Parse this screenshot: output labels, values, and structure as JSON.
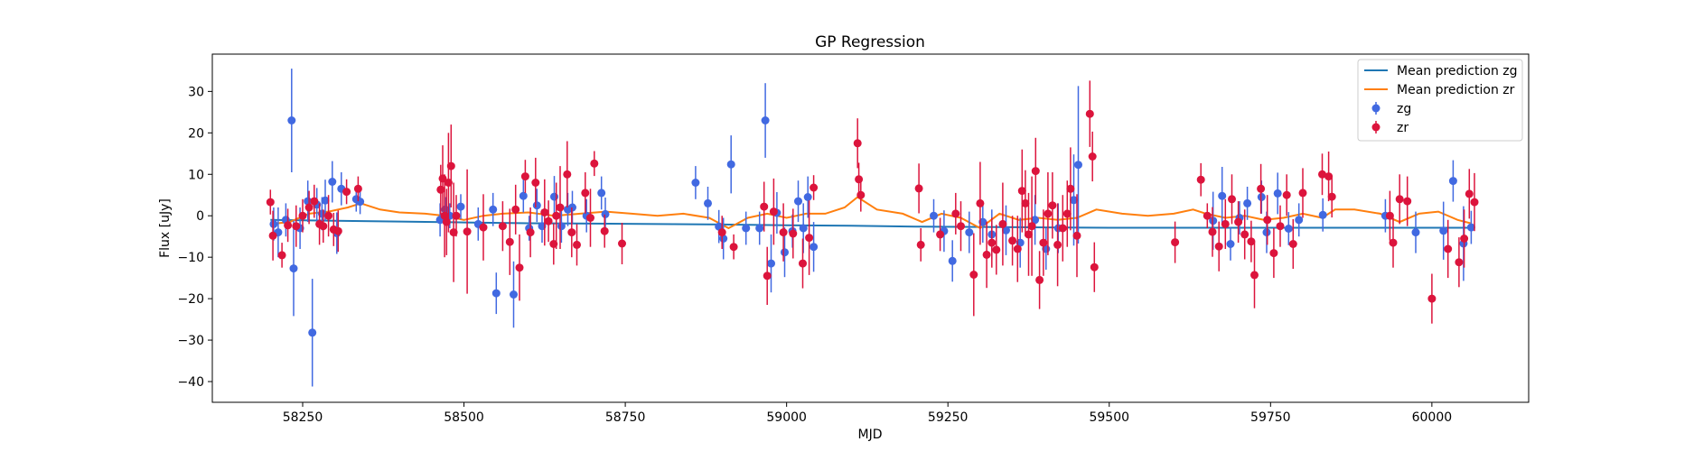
{
  "chart_data": {
    "type": "scatter",
    "title": "GP Regression",
    "xlabel": "MJD",
    "ylabel": "Flux [uJy]",
    "xlim": [
      58110,
      60150
    ],
    "ylim": [
      -45,
      39
    ],
    "xticks": [
      58250,
      58500,
      58750,
      59000,
      59250,
      59500,
      59750,
      60000
    ],
    "yticks": [
      -40,
      -30,
      -20,
      -10,
      0,
      10,
      20,
      30
    ],
    "grid": false,
    "legend_position": "top-right",
    "colors": {
      "zg_points": "#4169e1",
      "zr_points": "#dc143c",
      "zg_mean": "#1f77b4",
      "zr_mean": "#ff7f0e"
    },
    "lines": [
      {
        "name": "Mean prediction zg",
        "color": "#1f77b4",
        "x": [
          58200,
          58300,
          58400,
          58500,
          58600,
          58700,
          58800,
          58900,
          59000,
          59100,
          59200,
          59300,
          59400,
          59500,
          59600,
          59700,
          59800,
          59900,
          60000,
          60060
        ],
        "y": [
          -1.0,
          -1.2,
          -1.4,
          -1.6,
          -1.8,
          -1.9,
          -2.0,
          -2.1,
          -2.3,
          -2.4,
          -2.6,
          -2.7,
          -2.8,
          -2.9,
          -2.9,
          -2.9,
          -2.9,
          -2.9,
          -2.9,
          -2.9
        ]
      },
      {
        "name": "Mean prediction zr",
        "color": "#ff7f0e",
        "x": [
          58200,
          58230,
          58260,
          58290,
          58320,
          58340,
          58370,
          58400,
          58440,
          58470,
          58500,
          58530,
          58560,
          58600,
          58640,
          58680,
          58720,
          58760,
          58800,
          58840,
          58880,
          58910,
          58940,
          58970,
          59000,
          59030,
          59060,
          59090,
          59110,
          59140,
          59180,
          59210,
          59240,
          59270,
          59300,
          59330,
          59360,
          59390,
          59420,
          59450,
          59480,
          59520,
          59560,
          59600,
          59630,
          59650,
          59680,
          59710,
          59740,
          59770,
          59800,
          59830,
          59850,
          59880,
          59920,
          59950,
          59980,
          60010,
          60040,
          60060
        ],
        "y": [
          -2,
          -1.5,
          0.5,
          1,
          2,
          3,
          1.5,
          0.8,
          0.5,
          0,
          -1,
          0,
          0.5,
          0.8,
          0,
          0.5,
          1,
          0.5,
          0,
          0.5,
          -0.5,
          -3,
          -0.5,
          0.5,
          -0.5,
          0.5,
          0.5,
          2,
          4.5,
          1.5,
          0.5,
          -1.5,
          0.5,
          -0.5,
          -3,
          0.5,
          -1,
          -0.5,
          -1,
          -0.5,
          1.5,
          0.5,
          0,
          0.5,
          1.5,
          0.5,
          -0.5,
          0,
          -1,
          -0.5,
          0.5,
          -0.5,
          1.5,
          1.5,
          0.5,
          -1.5,
          0.5,
          1,
          -1,
          -1.8
        ]
      }
    ],
    "series": [
      {
        "name": "zg",
        "color": "#4169e1",
        "x": [
          58205,
          58212,
          58224,
          58233,
          58236,
          58246,
          58258,
          58265,
          58272,
          58280,
          58285,
          58296,
          58303,
          58310,
          58333,
          58339,
          58463,
          58471,
          58478,
          58495,
          58522,
          58545,
          58550,
          58577,
          58592,
          58601,
          58613,
          58621,
          58640,
          58651,
          58661,
          58668,
          58690,
          58713,
          58719,
          58859,
          58878,
          58895,
          58902,
          58914,
          58937,
          58958,
          58967,
          58976,
          58985,
          58997,
          59009,
          59018,
          59026,
          59033,
          59042,
          59228,
          59244,
          59257,
          59283,
          59304,
          59318,
          59340,
          59362,
          59385,
          59402,
          59421,
          59445,
          59452,
          59661,
          59675,
          59688,
          59702,
          59714,
          59736,
          59744,
          59761,
          59778,
          59794,
          59831,
          59928,
          59975,
          60018,
          60033,
          60049,
          60061
        ],
        "y": [
          -2,
          -4,
          -1,
          23,
          -12.7,
          -3,
          3.5,
          -28.2,
          2.7,
          0.5,
          3.7,
          8.2,
          -4.2,
          6.5,
          4,
          3.4,
          -1,
          1.5,
          0,
          2.2,
          -2,
          1.5,
          -18.7,
          -19,
          4.8,
          -3,
          2.5,
          -2.5,
          4.6,
          -2.5,
          1.5,
          2,
          0,
          5.5,
          0.4,
          8,
          3,
          -2.6,
          -5.5,
          12.4,
          -3,
          -3,
          23,
          -11.5,
          0.7,
          -8.8,
          -3.7,
          3.5,
          -3,
          4.5,
          -7.5,
          0,
          -3.7,
          -10.9,
          -4,
          -1.5,
          -4.5,
          -3.5,
          -6.5,
          -1,
          -8,
          -3,
          3.8,
          12.3,
          -1.2,
          4.8,
          -6.8,
          -0.5,
          3,
          4.5,
          -4,
          5.4,
          -3.1,
          -1,
          0.2,
          0,
          -4,
          -3.6,
          8.4,
          -6.7,
          -2.8
        ],
        "err": [
          4,
          6,
          4,
          12.5,
          11.5,
          5,
          5,
          13,
          4,
          4,
          5,
          5,
          5,
          4,
          3,
          3,
          4,
          3,
          3,
          3,
          4,
          4,
          5,
          8,
          4,
          3,
          4,
          4,
          5,
          4,
          4,
          4,
          4,
          4,
          4,
          4,
          4,
          4,
          5,
          7,
          4,
          4,
          9,
          7,
          5,
          6,
          4,
          5,
          6,
          5,
          6,
          4,
          5,
          5,
          5,
          5,
          6,
          6,
          6,
          6,
          5,
          6,
          11,
          19,
          7,
          7,
          4,
          4,
          4,
          4,
          5,
          5,
          4,
          4,
          4,
          4,
          5,
          7,
          5,
          9,
          4
        ]
      },
      {
        "name": "zr",
        "color": "#dc143c",
        "x": [
          58200,
          58204,
          58218,
          58227,
          58240,
          58250,
          58260,
          58268,
          58276,
          58282,
          58290,
          58298,
          58305,
          58318,
          58336,
          58464,
          58467,
          58470,
          58473,
          58476,
          58480,
          58484,
          58488,
          58505,
          58530,
          58560,
          58571,
          58580,
          58586,
          58595,
          58603,
          58611,
          58625,
          58631,
          58639,
          58643,
          58649,
          58660,
          58667,
          58675,
          58688,
          58696,
          58702,
          58718,
          58745,
          58900,
          58918,
          58965,
          58970,
          58980,
          58995,
          59010,
          59025,
          59035,
          59042,
          59110,
          59112,
          59115,
          59205,
          59208,
          59238,
          59262,
          59270,
          59290,
          59300,
          59310,
          59318,
          59325,
          59335,
          59350,
          59358,
          59365,
          59370,
          59375,
          59380,
          59386,
          59392,
          59398,
          59405,
          59412,
          59420,
          59428,
          59435,
          59440,
          59450,
          59470,
          59474,
          59477,
          59602,
          59642,
          59652,
          59660,
          59670,
          59680,
          59690,
          59700,
          59710,
          59720,
          59725,
          59735,
          59745,
          59755,
          59765,
          59775,
          59785,
          59800,
          59830,
          59840,
          59845,
          59935,
          59940,
          59950,
          59962,
          60000,
          60025,
          60042,
          60050,
          60058,
          60066
        ],
        "y": [
          3.3,
          -4.8,
          -9.5,
          -2.3,
          -2.5,
          0,
          2,
          3.5,
          -2,
          -2.5,
          0,
          -3.3,
          -3.7,
          5.8,
          6.5,
          6.3,
          9,
          0,
          -1.5,
          8,
          12,
          -4,
          0,
          -3.8,
          -2.8,
          -2.5,
          -6.3,
          1.5,
          -12.5,
          9.5,
          -4,
          8,
          0.8,
          -1.3,
          -6.8,
          0,
          2,
          10,
          -4,
          -7,
          5.5,
          -0.5,
          12.6,
          -3.7,
          -6.7,
          -4,
          -7.5,
          2.2,
          -14.5,
          1,
          -4,
          -4.3,
          -11.5,
          -5.3,
          6.8,
          17.5,
          8.8,
          5,
          6.6,
          -7,
          -4.5,
          0.5,
          -2.5,
          -14.2,
          3,
          -9.4,
          -6.5,
          -8.2,
          -2,
          -6,
          -8,
          6,
          3,
          -4.5,
          -2.5,
          10.8,
          -15.5,
          -6.5,
          0.5,
          2.5,
          -7,
          -3,
          0.5,
          6.5,
          -4.8,
          24.6,
          14.3,
          -12.4,
          -6.4,
          8.7,
          0,
          -3.9,
          -7.4,
          -2,
          4,
          -1.5,
          -4.5,
          -6.2,
          -14.3,
          6.5,
          -1,
          -9,
          -2.5,
          5,
          -6.8,
          5.5,
          10,
          9.5,
          4.6,
          0,
          -6.5,
          4,
          3.5,
          -20,
          -8,
          -11.2,
          -5.5,
          5.3,
          3.3
        ],
        "err": [
          3,
          6,
          3,
          4,
          5,
          4,
          4,
          4,
          5,
          4,
          5,
          4,
          5,
          3,
          3,
          6,
          8,
          10,
          8,
          12,
          10,
          12,
          5,
          15,
          8,
          6,
          8,
          6,
          8,
          4,
          6,
          6,
          8,
          5,
          5,
          8,
          10,
          8,
          6,
          5,
          5,
          7,
          3,
          4,
          5,
          4,
          3,
          6,
          7,
          8,
          7,
          6,
          6,
          9,
          3,
          6,
          4,
          4,
          6,
          4,
          4,
          5,
          6,
          10,
          10,
          8,
          6,
          6,
          10,
          6,
          8,
          10,
          8,
          10,
          12,
          8,
          7,
          8,
          10,
          8,
          10,
          8,
          8,
          10,
          10,
          8,
          6,
          6,
          5,
          4,
          3,
          6,
          6,
          6,
          6,
          5,
          6,
          5,
          8,
          6,
          6,
          6,
          5,
          5,
          6,
          6,
          5,
          6,
          5,
          6,
          6,
          6,
          6,
          6,
          7,
          6,
          7,
          6,
          7
        ]
      }
    ]
  }
}
